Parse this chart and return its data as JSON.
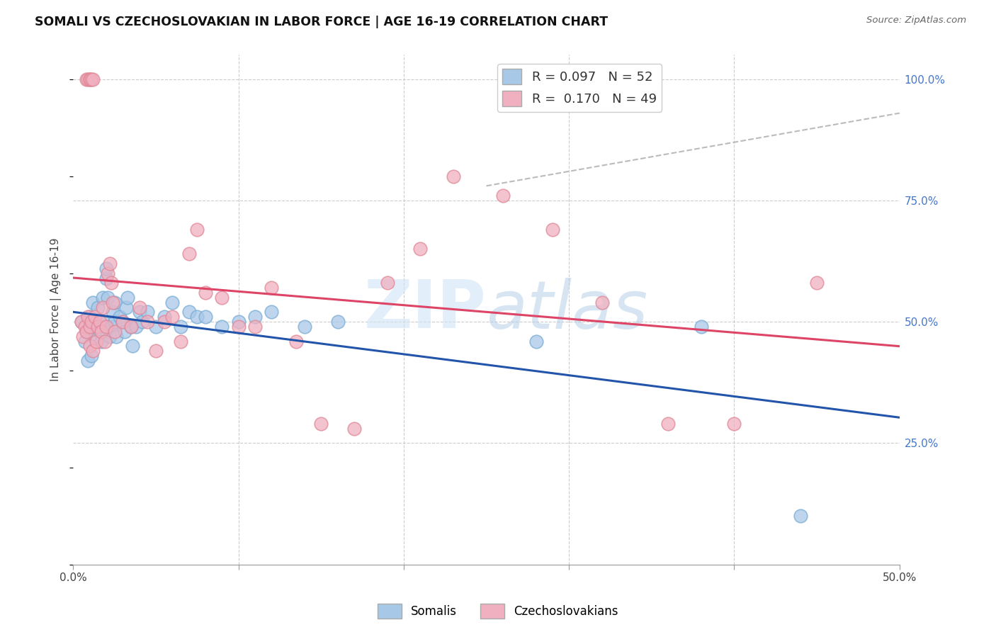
{
  "title": "SOMALI VS CZECHOSLOVAKIAN IN LABOR FORCE | AGE 16-19 CORRELATION CHART",
  "source": "Source: ZipAtlas.com",
  "ylabel": "In Labor Force | Age 16-19",
  "xlim": [
    0.0,
    0.5
  ],
  "ylim": [
    0.0,
    1.05
  ],
  "watermark": "ZIPatlas",
  "blue_scatter_color": "#a8c8e8",
  "blue_scatter_edge": "#7aadd4",
  "pink_scatter_color": "#f0b0c0",
  "pink_scatter_edge": "#e08898",
  "blue_line_color": "#2255aa",
  "pink_line_color": "#dd4466",
  "dashed_line_color": "#bbbbbb",
  "right_tick_color": "#4477cc",
  "R_blue": 0.097,
  "N_blue": 52,
  "R_pink": 0.17,
  "N_pink": 49,
  "somali_x": [
    0.005,
    0.007,
    0.008,
    0.009,
    0.01,
    0.01,
    0.011,
    0.012,
    0.012,
    0.013,
    0.015,
    0.016,
    0.017,
    0.018,
    0.018,
    0.019,
    0.02,
    0.02,
    0.021,
    0.022,
    0.023,
    0.024,
    0.025,
    0.025,
    0.026,
    0.028,
    0.03,
    0.031,
    0.032,
    0.033,
    0.035,
    0.036,
    0.038,
    0.04,
    0.042,
    0.045,
    0.05,
    0.055,
    0.06,
    0.065,
    0.07,
    0.075,
    0.08,
    0.09,
    0.1,
    0.11,
    0.12,
    0.14,
    0.16,
    0.28,
    0.38,
    0.44
  ],
  "somali_y": [
    0.5,
    0.46,
    0.48,
    0.42,
    0.49,
    0.51,
    0.43,
    0.5,
    0.54,
    0.47,
    0.53,
    0.48,
    0.46,
    0.55,
    0.5,
    0.49,
    0.59,
    0.61,
    0.55,
    0.47,
    0.49,
    0.52,
    0.5,
    0.54,
    0.47,
    0.51,
    0.5,
    0.48,
    0.53,
    0.55,
    0.49,
    0.45,
    0.49,
    0.52,
    0.5,
    0.52,
    0.49,
    0.51,
    0.54,
    0.49,
    0.52,
    0.51,
    0.51,
    0.49,
    0.5,
    0.51,
    0.52,
    0.49,
    0.5,
    0.46,
    0.49,
    0.1
  ],
  "czech_x": [
    0.005,
    0.006,
    0.007,
    0.008,
    0.009,
    0.01,
    0.01,
    0.011,
    0.012,
    0.013,
    0.014,
    0.015,
    0.016,
    0.017,
    0.018,
    0.019,
    0.02,
    0.021,
    0.022,
    0.023,
    0.024,
    0.025,
    0.03,
    0.035,
    0.04,
    0.045,
    0.05,
    0.055,
    0.06,
    0.065,
    0.07,
    0.075,
    0.08,
    0.09,
    0.1,
    0.11,
    0.12,
    0.135,
    0.15,
    0.17,
    0.19,
    0.21,
    0.23,
    0.26,
    0.29,
    0.32,
    0.36,
    0.4,
    0.45
  ],
  "czech_y": [
    0.5,
    0.47,
    0.49,
    0.48,
    0.51,
    0.45,
    0.49,
    0.5,
    0.44,
    0.51,
    0.46,
    0.49,
    0.5,
    0.48,
    0.53,
    0.46,
    0.49,
    0.6,
    0.62,
    0.58,
    0.54,
    0.48,
    0.5,
    0.49,
    0.53,
    0.5,
    0.44,
    0.5,
    0.51,
    0.46,
    0.64,
    0.69,
    0.56,
    0.55,
    0.49,
    0.49,
    0.57,
    0.46,
    0.29,
    0.28,
    0.58,
    0.65,
    0.8,
    0.76,
    0.69,
    0.54,
    0.29,
    0.29,
    0.58
  ],
  "czech_top_x": [
    0.008,
    0.009,
    0.01,
    0.01,
    0.011,
    0.012
  ],
  "czech_top_y": [
    1.0,
    1.0,
    1.0,
    1.0,
    1.0,
    1.0
  ]
}
